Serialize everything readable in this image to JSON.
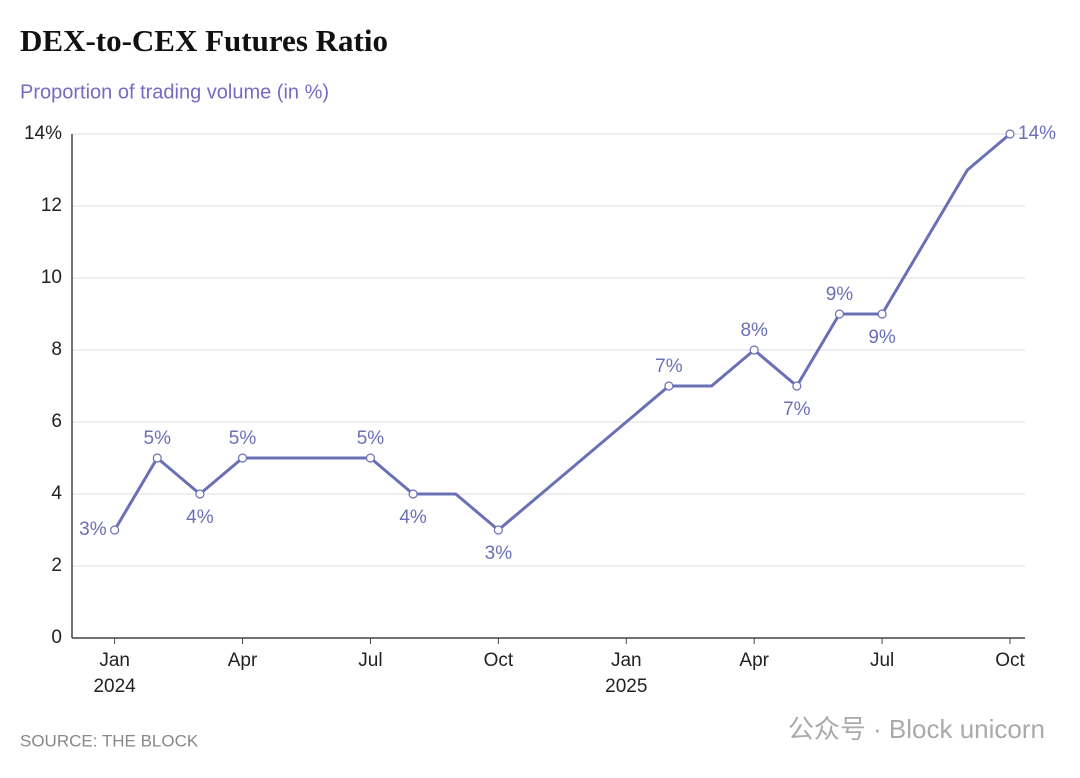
{
  "chart_data": {
    "type": "line",
    "title": "DEX-to-CEX Futures Ratio",
    "subtitle": "Proportion of trading volume (in %)",
    "source": "SOURCE: THE BLOCK",
    "watermark": "公众号 · Block unicorn",
    "x": [
      "2024-01",
      "2024-02",
      "2024-03",
      "2024-04",
      "2024-05",
      "2024-06",
      "2024-07",
      "2024-08",
      "2024-09",
      "2024-10",
      "2024-11",
      "2024-12",
      "2025-01",
      "2025-02",
      "2025-03",
      "2025-04",
      "2025-05",
      "2025-06",
      "2025-07",
      "2025-08",
      "2025-09",
      "2025-10"
    ],
    "series": [
      {
        "name": "DEX-to-CEX futures ratio",
        "color": "#6a70b6",
        "values": [
          3,
          5,
          4,
          5,
          5,
          5,
          5,
          4,
          4,
          3,
          4,
          5,
          6,
          7,
          7,
          8,
          7,
          9,
          9,
          11,
          13,
          14
        ],
        "value_labels": [
          "3%",
          "5%",
          "4%",
          "5%",
          null,
          null,
          "5%",
          "4%",
          null,
          "3%",
          null,
          null,
          null,
          "7%",
          null,
          "8%",
          "7%",
          "9%",
          "9%",
          null,
          null,
          "14%"
        ]
      }
    ],
    "xlim": [
      "2023-12",
      "2025-10"
    ],
    "xticks": [
      {
        "value": "2024-01",
        "label": "Jan"
      },
      {
        "value": "2024-04",
        "label": "Apr"
      },
      {
        "value": "2024-07",
        "label": "Jul"
      },
      {
        "value": "2024-10",
        "label": "Oct"
      },
      {
        "value": "2025-01",
        "label": "Jan"
      },
      {
        "value": "2025-04",
        "label": "Apr"
      },
      {
        "value": "2025-07",
        "label": "Jul"
      },
      {
        "value": "2025-10",
        "label": "Oct"
      }
    ],
    "x_year_labels": [
      {
        "value": "2024-01",
        "label": "2024"
      },
      {
        "value": "2025-01",
        "label": "2025"
      }
    ],
    "ylim": [
      0,
      14
    ],
    "yticks": [
      0,
      2,
      4,
      6,
      8,
      10,
      12,
      {
        "value": 14,
        "label": "14%"
      }
    ],
    "grid": true
  }
}
